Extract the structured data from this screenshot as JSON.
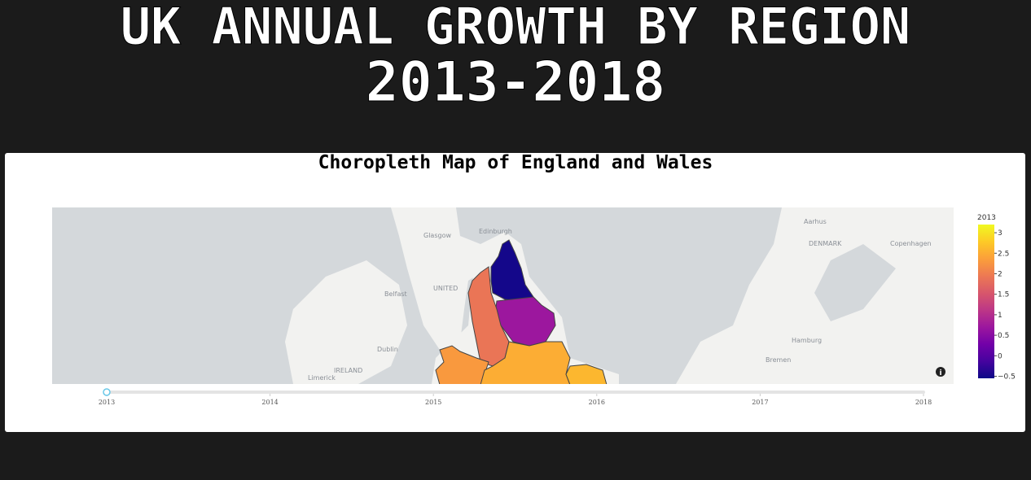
{
  "header": {
    "title_line1": "UK ANNUAL GROWTH BY REGION",
    "title_line2": "2013-2018"
  },
  "map": {
    "title": "Choropleth Map of England and Wales",
    "place_labels": [
      "Glasgow",
      "Edinburgh",
      "Belfast",
      "Dublin",
      "IRELAND",
      "Limerick",
      "UNITED",
      "DENMARK",
      "Aarhus",
      "Copenhagen",
      "Hamburg",
      "Bremen"
    ],
    "regions": {
      "values": [
        -0.5,
        0.7,
        1.9,
        2.3,
        2.5,
        2.6
      ]
    },
    "colorbar": {
      "title": "2013",
      "lim": [
        -0.55,
        3.2
      ],
      "ticks": [
        {
          "value": -0.5,
          "label": "−0.5"
        },
        0,
        0.5,
        1,
        1.5,
        2,
        2.5,
        3
      ],
      "colorscale": [
        "#0d0887",
        "#46039f",
        "#7201a8",
        "#9c179e",
        "#bd3786",
        "#d8576b",
        "#ed7953",
        "#fb9f3a",
        "#fdca26",
        "#f0f921"
      ]
    },
    "slider": {
      "steps": [
        "2013",
        "2014",
        "2015",
        "2016",
        "2017",
        "2018"
      ]
    }
  }
}
